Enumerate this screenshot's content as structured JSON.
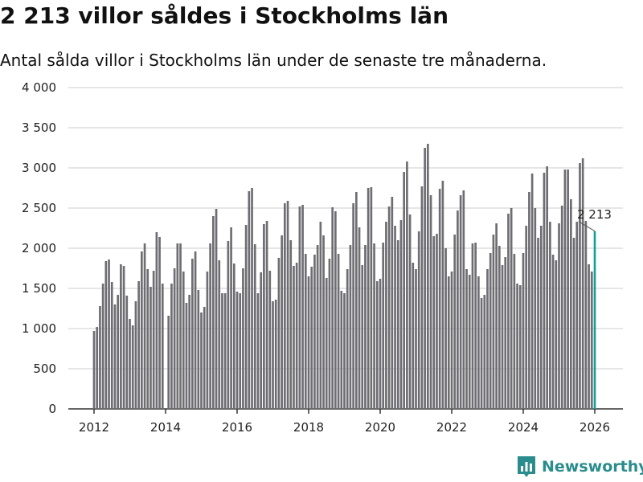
{
  "header": {
    "title": "2 213 villor såldes i Stockholms län",
    "subtitle": "Antal sålda villor i Stockholms län under de senaste tre månaderna."
  },
  "brand": {
    "name": "Newsworthy"
  },
  "colors": {
    "bar": "#6e6d72",
    "highlight": "#15a09b",
    "grid": "#dddddd",
    "axis": "#333333",
    "brand": "#2a8c8c"
  },
  "chart_data": {
    "type": "bar",
    "title": "2 213 villor såldes i Stockholms län",
    "xlabel": "",
    "ylabel": "",
    "ylim": [
      0,
      4000
    ],
    "y_ticks": [
      0,
      500,
      1000,
      1500,
      2000,
      2500,
      3000,
      3500,
      4000
    ],
    "y_tick_labels": [
      "0",
      "500",
      "1 000",
      "1 500",
      "2 000",
      "2 500",
      "3 000",
      "3 500",
      "4 000"
    ],
    "x_ticks": [
      "2012",
      "2014",
      "2016",
      "2018",
      "2020",
      "2022",
      "2024",
      "2026"
    ],
    "start": "2012-01",
    "frequency": "monthly",
    "values": [
      970,
      1020,
      1280,
      1560,
      1840,
      1860,
      1580,
      1300,
      1420,
      1800,
      1780,
      1410,
      1120,
      1040,
      1340,
      1590,
      1960,
      2060,
      1740,
      1520,
      1720,
      2200,
      2140,
      1560,
      10,
      1160,
      1560,
      1750,
      2060,
      2060,
      1710,
      1320,
      1420,
      1870,
      1960,
      1480,
      1200,
      1270,
      1710,
      2060,
      2400,
      2490,
      1850,
      1440,
      1440,
      2090,
      2260,
      1810,
      1460,
      1440,
      1750,
      2290,
      2710,
      2750,
      2050,
      1440,
      1700,
      2300,
      2340,
      1720,
      1340,
      1360,
      1880,
      2160,
      2560,
      2590,
      2100,
      1780,
      1820,
      2520,
      2540,
      1930,
      1650,
      1770,
      1920,
      2040,
      2330,
      2160,
      1630,
      1870,
      2510,
      2460,
      1930,
      1470,
      1440,
      1740,
      2040,
      2560,
      2700,
      2260,
      1790,
      2040,
      2750,
      2760,
      2060,
      1590,
      1620,
      2070,
      2330,
      2520,
      2640,
      2280,
      2100,
      2350,
      2950,
      3080,
      2420,
      1820,
      1740,
      2210,
      2770,
      3250,
      3300,
      2660,
      2150,
      2180,
      2740,
      2840,
      2000,
      1650,
      1710,
      2170,
      2470,
      2660,
      2720,
      1740,
      1670,
      2060,
      2070,
      1650,
      1380,
      1420,
      1740,
      1940,
      2170,
      2310,
      2030,
      1790,
      1890,
      2430,
      2500,
      1930,
      1560,
      1540,
      1940,
      2280,
      2700,
      2930,
      2500,
      2130,
      2280,
      2940,
      3020,
      2330,
      1920,
      1850,
      2310,
      2530,
      2980,
      2980,
      2610,
      2130,
      2330,
      3060,
      3120,
      2340,
      1800,
      1710,
      2213
    ],
    "highlight": {
      "label": "2 213",
      "value": 2213
    }
  }
}
